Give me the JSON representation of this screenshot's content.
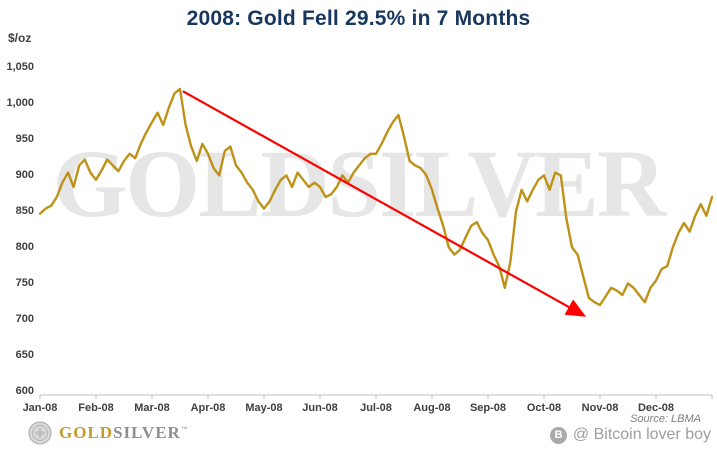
{
  "header": {
    "title": "2008: Gold Fell 29.5% in 7 Months"
  },
  "axes": {
    "unit_label": "$/oz"
  },
  "watermark": "GOLDSILVER",
  "footer": {
    "brand_gold": "GOLD",
    "brand_silver": "SILVER",
    "brand_tm": "™",
    "source": "Source: LBMA",
    "attribution": "@ Bitcoin lover boy",
    "bitcoin_icon_letter": "B"
  },
  "chart_data": {
    "type": "line",
    "title": "2008: Gold Fell 29.5% in 7 Months",
    "ylabel": "$/oz",
    "grid": false,
    "legend": false,
    "ylim": [
      600,
      1050
    ],
    "xlim_months": [
      0,
      12
    ],
    "ytick_values": [
      600,
      650,
      700,
      750,
      800,
      850,
      900,
      950,
      1000,
      1050
    ],
    "ytick_labels": [
      "600",
      "650",
      "700",
      "750",
      "800",
      "850",
      "900",
      "950",
      "1,000",
      "1,050"
    ],
    "xtick_labels": [
      "Jan-08",
      "Feb-08",
      "Mar-08",
      "Apr-08",
      "May-08",
      "Jun-08",
      "Jul-08",
      "Aug-08",
      "Sep-08",
      "Oct-08",
      "Nov-08",
      "Dec-08"
    ],
    "line_color": "#BD9217",
    "x_start": 0,
    "x_step": 0.1,
    "values": [
      845,
      852,
      856,
      868,
      888,
      902,
      882,
      912,
      920,
      902,
      892,
      905,
      920,
      912,
      904,
      918,
      928,
      922,
      942,
      958,
      972,
      985,
      968,
      992,
      1012,
      1018,
      968,
      938,
      918,
      942,
      928,
      908,
      898,
      932,
      938,
      912,
      902,
      888,
      878,
      862,
      852,
      862,
      878,
      892,
      898,
      882,
      902,
      892,
      882,
      888,
      882,
      868,
      872,
      882,
      898,
      888,
      902,
      912,
      922,
      928,
      928,
      942,
      958,
      972,
      982,
      952,
      918,
      912,
      908,
      898,
      878,
      852,
      828,
      798,
      788,
      795,
      812,
      828,
      833,
      818,
      808,
      788,
      772,
      742,
      778,
      848,
      878,
      862,
      878,
      892,
      898,
      878,
      902,
      898,
      838,
      798,
      788,
      758,
      728,
      722,
      718,
      730,
      742,
      738,
      732,
      748,
      742,
      732,
      722,
      742,
      752,
      768,
      772,
      798,
      818,
      832,
      820,
      842,
      858,
      842,
      868
    ],
    "annotation_arrow": {
      "color": "#FF0000",
      "from": {
        "month": 2.55,
        "value": 1015
      },
      "to": {
        "month": 9.7,
        "value": 704
      }
    },
    "source": "Source: LBMA"
  }
}
